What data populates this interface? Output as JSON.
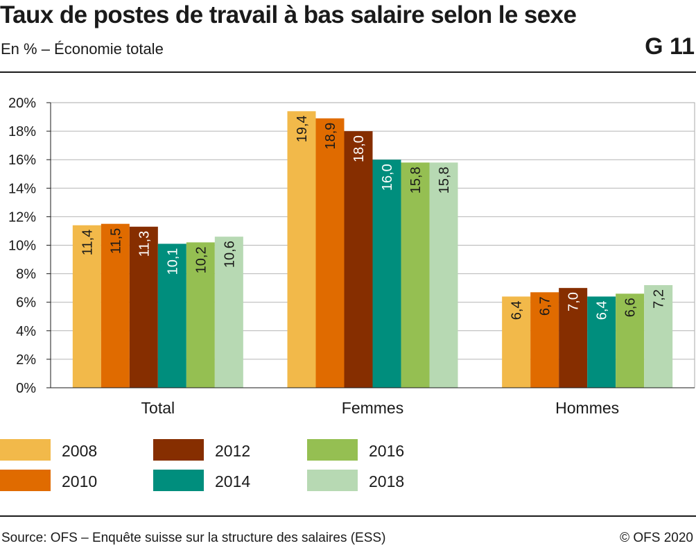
{
  "header": {
    "title": "Taux de postes de travail à bas salaire selon le sexe",
    "subtitle": "En % – Économie totale",
    "code": "G 11"
  },
  "footer": {
    "source": "Source: OFS – Enquête suisse sur la structure des salaires (ESS)",
    "copyright": "© OFS 2020"
  },
  "chart_data": {
    "type": "bar",
    "title": "Taux de postes de travail à bas salaire selon le sexe",
    "subtitle": "En % – Économie totale",
    "categories": [
      "Total",
      "Femmes",
      "Hommes"
    ],
    "series": [
      {
        "name": "2008",
        "color": "#f2b94a",
        "values": [
          11.4,
          19.4,
          6.4
        ],
        "labels": [
          "11,4",
          "19,4",
          "6,4"
        ],
        "label_color": "#1a1a1a"
      },
      {
        "name": "2010",
        "color": "#e06b00",
        "values": [
          11.5,
          18.9,
          6.7
        ],
        "labels": [
          "11,5",
          "18,9",
          "6,7"
        ],
        "label_color": "#1a1a1a"
      },
      {
        "name": "2012",
        "color": "#862e00",
        "values": [
          11.3,
          18.0,
          7.0
        ],
        "labels": [
          "11,3",
          "18,0",
          "7,0"
        ],
        "label_color": "#ffffff"
      },
      {
        "name": "2014",
        "color": "#008e7d",
        "values": [
          10.1,
          16.0,
          6.4
        ],
        "labels": [
          "10,1",
          "16,0",
          "6,4"
        ],
        "label_color": "#ffffff"
      },
      {
        "name": "2016",
        "color": "#95bf52",
        "values": [
          10.2,
          15.8,
          6.6
        ],
        "labels": [
          "10,2",
          "15,8",
          "6,6"
        ],
        "label_color": "#1a1a1a"
      },
      {
        "name": "2018",
        "color": "#b7d9b3",
        "values": [
          10.6,
          15.8,
          7.2
        ],
        "labels": [
          "10,6",
          "15,8",
          "7,2"
        ],
        "label_color": "#1a1a1a"
      }
    ],
    "ylim": [
      0,
      20
    ],
    "yticks": [
      0,
      2,
      4,
      6,
      8,
      10,
      12,
      14,
      16,
      18,
      20
    ],
    "ytick_labels": [
      "0%",
      "2%",
      "4%",
      "6%",
      "8%",
      "10%",
      "12%",
      "14%",
      "16%",
      "18%",
      "20%"
    ],
    "xlabel": "",
    "ylabel": "",
    "grid": true,
    "legend": "bottom"
  }
}
